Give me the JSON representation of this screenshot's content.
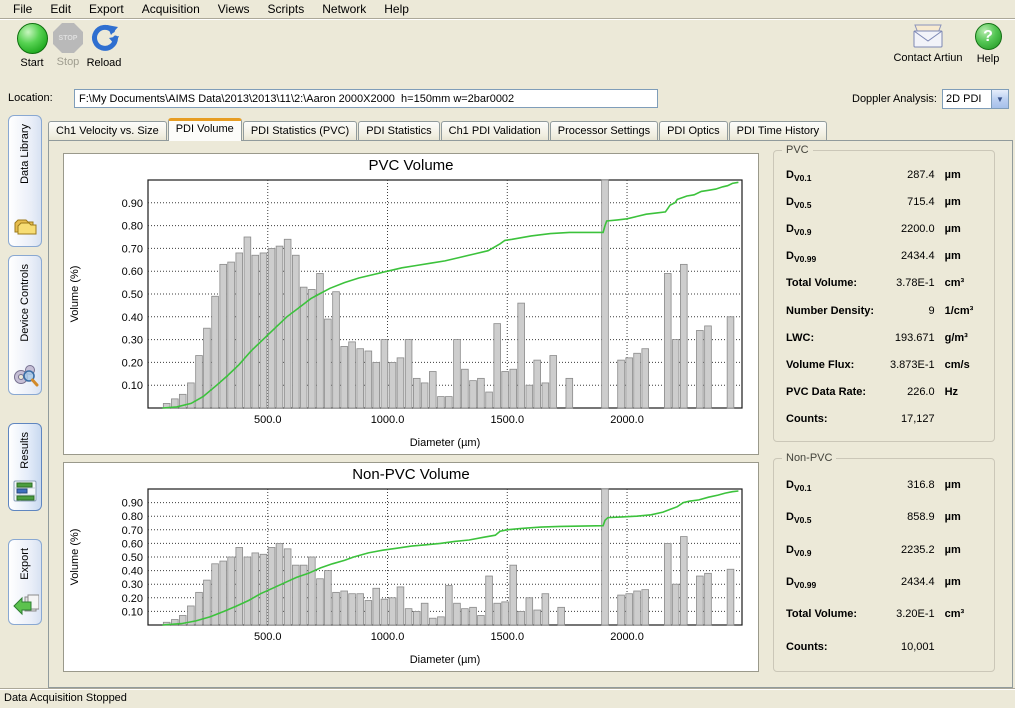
{
  "menu": {
    "items": [
      "File",
      "Edit",
      "Export",
      "Acquisition",
      "Views",
      "Scripts",
      "Network",
      "Help"
    ]
  },
  "toolbar": {
    "start": "Start",
    "stop": "Stop",
    "stop_badge": "STOP",
    "reload": "Reload",
    "contact": "Contact Artiun",
    "help": "Help"
  },
  "location": {
    "label": "Location:",
    "value": "F:\\My Documents\\AIMS Data\\2013\\2013\\11\\2:\\Aaron 2000X2000  h=150mm w=2bar0002"
  },
  "doppler": {
    "label": "Doppler Analysis:",
    "value": "2D PDI"
  },
  "sidebar": {
    "active_index": 2,
    "items": [
      {
        "label": "Data Library",
        "icon": "folders-icon"
      },
      {
        "label": "Device Controls",
        "icon": "gears-icon"
      },
      {
        "label": "Results",
        "icon": "results-chart-icon"
      },
      {
        "label": "Export",
        "icon": "export-arrow-icon"
      }
    ]
  },
  "tabs": {
    "active_index": 1,
    "items": [
      "Ch1 Velocity vs. Size",
      "PDI Volume",
      "PDI Statistics (PVC)",
      "PDI Statistics",
      "Ch1 PDI Validation",
      "Processor Settings",
      "PDI Optics",
      "PDI Time History"
    ]
  },
  "stats_panels": [
    {
      "title": "PVC",
      "rows": [
        {
          "label": "D",
          "sub": "V0.1",
          "value": "287.4",
          "unit": "µm"
        },
        {
          "label": "D",
          "sub": "V0.5",
          "value": "715.4",
          "unit": "µm"
        },
        {
          "label": "D",
          "sub": "V0.9",
          "value": "2200.0",
          "unit": "µm"
        },
        {
          "label": "D",
          "sub": "V0.99",
          "value": "2434.4",
          "unit": "µm"
        },
        {
          "label": "Total Volume:",
          "value": "3.78E-1",
          "unit": "cm³"
        },
        {
          "label": "Number Density:",
          "value": "9",
          "unit": "1/cm³"
        },
        {
          "label": "LWC:",
          "value": "193.671",
          "unit": "g/m³"
        },
        {
          "label": "Volume Flux:",
          "value": "3.873E-1",
          "unit": "cm/s"
        },
        {
          "label": "PVC Data Rate:",
          "value": "226.0",
          "unit": "Hz"
        },
        {
          "label": "Counts:",
          "value": "17,127",
          "unit": ""
        }
      ]
    },
    {
      "title": "Non-PVC",
      "rows": [
        {
          "label": "D",
          "sub": "V0.1",
          "value": "316.8",
          "unit": "µm"
        },
        {
          "label": "D",
          "sub": "V0.5",
          "value": "858.9",
          "unit": "µm"
        },
        {
          "label": "D",
          "sub": "V0.9",
          "value": "2235.2",
          "unit": "µm"
        },
        {
          "label": "D",
          "sub": "V0.99",
          "value": "2434.4",
          "unit": "µm"
        },
        {
          "label": "Total Volume:",
          "value": "3.20E-1",
          "unit": "cm³"
        },
        {
          "label": "Counts:",
          "value": "10,001",
          "unit": ""
        }
      ]
    }
  ],
  "status_bar": {
    "text": "Data Acquisition Stopped"
  },
  "colors": {
    "window_bg": "#ece9d8",
    "line_green": "#3cc23c",
    "bar_fill": "#cdcdcd",
    "bar_stroke": "#8a8a8a",
    "active_tab_accent": "#e79d23",
    "plot_border": "#1c1c1c"
  },
  "chart_data": [
    {
      "type": "bar",
      "title": "PVC Volume",
      "xlabel": "Diameter (µm)",
      "ylabel": "Volume (%)",
      "xlim": [
        0,
        2480
      ],
      "ylim": [
        0,
        1.0
      ],
      "x_ticks": [
        500,
        1000,
        1500,
        2000
      ],
      "x_tick_labels": [
        "500.0",
        "1000.0",
        "1500.0",
        "2000.0"
      ],
      "y_ticks": [
        0.1,
        0.2,
        0.3,
        0.4,
        0.5,
        0.6,
        0.7,
        0.8,
        0.9
      ],
      "y_tick_labels": [
        "0.10",
        "0.20",
        "0.30",
        "0.40",
        "0.50",
        "0.60",
        "0.70",
        "0.80",
        "0.90"
      ],
      "grid": "dotted",
      "bar_width_um": 28,
      "bars": [
        [
          78,
          0.02
        ],
        [
          112,
          0.04
        ],
        [
          145,
          0.06
        ],
        [
          179,
          0.11
        ],
        [
          213,
          0.23
        ],
        [
          246,
          0.35
        ],
        [
          280,
          0.49
        ],
        [
          314,
          0.63
        ],
        [
          347,
          0.64
        ],
        [
          381,
          0.68
        ],
        [
          415,
          0.75
        ],
        [
          448,
          0.67
        ],
        [
          482,
          0.68
        ],
        [
          516,
          0.7
        ],
        [
          549,
          0.71
        ],
        [
          583,
          0.74
        ],
        [
          617,
          0.67
        ],
        [
          650,
          0.53
        ],
        [
          684,
          0.52
        ],
        [
          718,
          0.59
        ],
        [
          751,
          0.39
        ],
        [
          785,
          0.51
        ],
        [
          819,
          0.27
        ],
        [
          852,
          0.29
        ],
        [
          886,
          0.26
        ],
        [
          920,
          0.25
        ],
        [
          953,
          0.2
        ],
        [
          987,
          0.3
        ],
        [
          1021,
          0.2
        ],
        [
          1054,
          0.22
        ],
        [
          1088,
          0.3
        ],
        [
          1122,
          0.13
        ],
        [
          1155,
          0.11
        ],
        [
          1189,
          0.16
        ],
        [
          1223,
          0.05
        ],
        [
          1256,
          0.05
        ],
        [
          1290,
          0.3
        ],
        [
          1323,
          0.17
        ],
        [
          1357,
          0.12
        ],
        [
          1390,
          0.13
        ],
        [
          1424,
          0.07
        ],
        [
          1458,
          0.37
        ],
        [
          1491,
          0.16
        ],
        [
          1525,
          0.17
        ],
        [
          1558,
          0.46
        ],
        [
          1592,
          0.1
        ],
        [
          1625,
          0.21
        ],
        [
          1659,
          0.11
        ],
        [
          1692,
          0.23
        ],
        [
          1759,
          0.13
        ],
        [
          1908,
          1.0
        ],
        [
          1975,
          0.21
        ],
        [
          2009,
          0.22
        ],
        [
          2042,
          0.24
        ],
        [
          2076,
          0.26
        ],
        [
          2170,
          0.59
        ],
        [
          2203,
          0.3
        ],
        [
          2237,
          0.63
        ],
        [
          2304,
          0.34
        ],
        [
          2338,
          0.36
        ],
        [
          2432,
          0.4
        ]
      ],
      "cumulative_line": [
        [
          60,
          0.0
        ],
        [
          120,
          0.005
        ],
        [
          180,
          0.02
        ],
        [
          230,
          0.05
        ],
        [
          287,
          0.1
        ],
        [
          330,
          0.14
        ],
        [
          380,
          0.19
        ],
        [
          430,
          0.25
        ],
        [
          480,
          0.3
        ],
        [
          530,
          0.35
        ],
        [
          580,
          0.4
        ],
        [
          630,
          0.44
        ],
        [
          680,
          0.48
        ],
        [
          715,
          0.5
        ],
        [
          760,
          0.525
        ],
        [
          820,
          0.55
        ],
        [
          880,
          0.57
        ],
        [
          940,
          0.585
        ],
        [
          1000,
          0.6
        ],
        [
          1060,
          0.615
        ],
        [
          1120,
          0.625
        ],
        [
          1180,
          0.635
        ],
        [
          1240,
          0.645
        ],
        [
          1300,
          0.66
        ],
        [
          1360,
          0.675
        ],
        [
          1420,
          0.69
        ],
        [
          1470,
          0.72
        ],
        [
          1490,
          0.735
        ],
        [
          1520,
          0.74
        ],
        [
          1600,
          0.755
        ],
        [
          1680,
          0.765
        ],
        [
          1760,
          0.77
        ],
        [
          1900,
          0.77
        ],
        [
          1908,
          0.8
        ],
        [
          1915,
          0.82
        ],
        [
          1960,
          0.825
        ],
        [
          2000,
          0.83
        ],
        [
          2040,
          0.84
        ],
        [
          2080,
          0.85
        ],
        [
          2120,
          0.855
        ],
        [
          2160,
          0.86
        ],
        [
          2170,
          0.875
        ],
        [
          2180,
          0.89
        ],
        [
          2200,
          0.9
        ],
        [
          2210,
          0.915
        ],
        [
          2237,
          0.925
        ],
        [
          2250,
          0.93
        ],
        [
          2280,
          0.935
        ],
        [
          2310,
          0.95
        ],
        [
          2340,
          0.955
        ],
        [
          2370,
          0.96
        ],
        [
          2400,
          0.97
        ],
        [
          2420,
          0.975
        ],
        [
          2440,
          0.985
        ],
        [
          2465,
          0.99
        ]
      ]
    },
    {
      "type": "bar",
      "title": "Non-PVC Volume",
      "xlabel": "Diameter (µm)",
      "ylabel": "Volume (%)",
      "xlim": [
        0,
        2480
      ],
      "ylim": [
        0,
        1.0
      ],
      "x_ticks": [
        500,
        1000,
        1500,
        2000
      ],
      "x_tick_labels": [
        "500.0",
        "1000.0",
        "1500.0",
        "2000.0"
      ],
      "y_ticks": [
        0.1,
        0.2,
        0.3,
        0.4,
        0.5,
        0.6,
        0.7,
        0.8,
        0.9
      ],
      "y_tick_labels": [
        "0.10",
        "0.20",
        "0.30",
        "0.40",
        "0.50",
        "0.60",
        "0.70",
        "0.80",
        "0.90"
      ],
      "grid": "dotted",
      "bar_width_um": 28,
      "bars": [
        [
          78,
          0.02
        ],
        [
          112,
          0.04
        ],
        [
          145,
          0.07
        ],
        [
          179,
          0.14
        ],
        [
          213,
          0.24
        ],
        [
          246,
          0.33
        ],
        [
          280,
          0.45
        ],
        [
          314,
          0.47
        ],
        [
          347,
          0.5
        ],
        [
          381,
          0.57
        ],
        [
          415,
          0.5
        ],
        [
          448,
          0.53
        ],
        [
          482,
          0.52
        ],
        [
          516,
          0.57
        ],
        [
          549,
          0.6
        ],
        [
          583,
          0.56
        ],
        [
          617,
          0.44
        ],
        [
          650,
          0.44
        ],
        [
          684,
          0.5
        ],
        [
          718,
          0.34
        ],
        [
          751,
          0.4
        ],
        [
          785,
          0.24
        ],
        [
          819,
          0.25
        ],
        [
          852,
          0.23
        ],
        [
          886,
          0.23
        ],
        [
          920,
          0.18
        ],
        [
          953,
          0.27
        ],
        [
          987,
          0.19
        ],
        [
          1021,
          0.2
        ],
        [
          1054,
          0.28
        ],
        [
          1088,
          0.12
        ],
        [
          1122,
          0.1
        ],
        [
          1155,
          0.16
        ],
        [
          1189,
          0.05
        ],
        [
          1223,
          0.06
        ],
        [
          1256,
          0.29
        ],
        [
          1290,
          0.16
        ],
        [
          1323,
          0.12
        ],
        [
          1357,
          0.13
        ],
        [
          1390,
          0.07
        ],
        [
          1424,
          0.36
        ],
        [
          1458,
          0.16
        ],
        [
          1491,
          0.17
        ],
        [
          1525,
          0.44
        ],
        [
          1558,
          0.1
        ],
        [
          1592,
          0.2
        ],
        [
          1625,
          0.11
        ],
        [
          1659,
          0.23
        ],
        [
          1725,
          0.13
        ],
        [
          1908,
          1.0
        ],
        [
          1975,
          0.22
        ],
        [
          2009,
          0.23
        ],
        [
          2042,
          0.25
        ],
        [
          2076,
          0.26
        ],
        [
          2170,
          0.6
        ],
        [
          2203,
          0.3
        ],
        [
          2237,
          0.65
        ],
        [
          2304,
          0.36
        ],
        [
          2338,
          0.38
        ],
        [
          2432,
          0.41
        ]
      ],
      "cumulative_line": [
        [
          60,
          0.0
        ],
        [
          140,
          0.01
        ],
        [
          200,
          0.03
        ],
        [
          260,
          0.06
        ],
        [
          317,
          0.1
        ],
        [
          370,
          0.14
        ],
        [
          420,
          0.18
        ],
        [
          470,
          0.23
        ],
        [
          520,
          0.27
        ],
        [
          570,
          0.31
        ],
        [
          620,
          0.35
        ],
        [
          670,
          0.38
        ],
        [
          720,
          0.42
        ],
        [
          770,
          0.45
        ],
        [
          820,
          0.475
        ],
        [
          859,
          0.5
        ],
        [
          920,
          0.53
        ],
        [
          980,
          0.55
        ],
        [
          1040,
          0.565
        ],
        [
          1100,
          0.58
        ],
        [
          1160,
          0.59
        ],
        [
          1220,
          0.6
        ],
        [
          1280,
          0.615
        ],
        [
          1340,
          0.625
        ],
        [
          1400,
          0.645
        ],
        [
          1450,
          0.66
        ],
        [
          1470,
          0.69
        ],
        [
          1500,
          0.7
        ],
        [
          1560,
          0.71
        ],
        [
          1640,
          0.72
        ],
        [
          1720,
          0.725
        ],
        [
          1900,
          0.73
        ],
        [
          1908,
          0.77
        ],
        [
          1920,
          0.79
        ],
        [
          1980,
          0.795
        ],
        [
          2040,
          0.8
        ],
        [
          2100,
          0.81
        ],
        [
          2150,
          0.83
        ],
        [
          2180,
          0.85
        ],
        [
          2210,
          0.87
        ],
        [
          2235,
          0.9
        ],
        [
          2260,
          0.91
        ],
        [
          2300,
          0.92
        ],
        [
          2340,
          0.94
        ],
        [
          2380,
          0.955
        ],
        [
          2410,
          0.97
        ],
        [
          2440,
          0.98
        ],
        [
          2465,
          0.985
        ]
      ]
    }
  ]
}
